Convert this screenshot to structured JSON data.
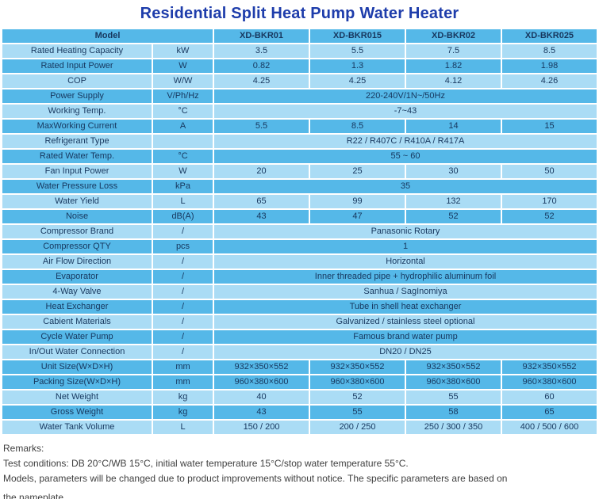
{
  "title": "Residential Split Heat Pump Water Heater",
  "colors": {
    "row_dark": "#55b8e8",
    "row_light": "#aadcf5",
    "title_blue": "#1e3dab",
    "cell_text": "#17375e"
  },
  "table": {
    "model_label": "Model",
    "models": [
      "XD-BKR01",
      "XD-BKR015",
      "XD-BKR02",
      "XD-BKR025"
    ],
    "rows": [
      {
        "label": "Rated Heating Capacity",
        "unit": "kW",
        "values": [
          "3.5",
          "5.5",
          "7.5",
          "8.5"
        ],
        "shade": "light"
      },
      {
        "label": "Rated Input Power",
        "unit": "W",
        "values": [
          "0.82",
          "1.3",
          "1.82",
          "1.98"
        ],
        "shade": "dark"
      },
      {
        "label": "COP",
        "unit": "W/W",
        "values": [
          "4.25",
          "4.25",
          "4.12",
          "4.26"
        ],
        "shade": "light"
      },
      {
        "label": "Power Supply",
        "unit": "V/Ph/Hz",
        "span": "220-240V/1N~/50Hz",
        "shade": "dark"
      },
      {
        "label": "Working Temp.",
        "unit": "°C",
        "span": "-7~43",
        "shade": "light"
      },
      {
        "label": "MaxWorking Current",
        "unit": "A",
        "values": [
          "5.5",
          "8.5",
          "14",
          "15"
        ],
        "shade": "dark"
      },
      {
        "label": "Refrigerant Type",
        "unit": "",
        "span": "R22 / R407C / R410A / R417A",
        "shade": "light"
      },
      {
        "label": "Rated Water Temp.",
        "unit": "°C",
        "span": "55 ~ 60",
        "shade": "dark"
      },
      {
        "label": "Fan Input Power",
        "unit": "W",
        "values": [
          "20",
          "25",
          "30",
          "50"
        ],
        "shade": "light"
      },
      {
        "label": "Water Pressure Loss",
        "unit": "kPa",
        "span": "35",
        "shade": "dark"
      },
      {
        "label": "Water Yield",
        "unit": "L",
        "values": [
          "65",
          "99",
          "132",
          "170"
        ],
        "shade": "light"
      },
      {
        "label": "Noise",
        "unit": "dB(A)",
        "values": [
          "43",
          "47",
          "52",
          "52"
        ],
        "shade": "dark"
      },
      {
        "label": "Compressor Brand",
        "unit": "/",
        "span": "Panasonic Rotary",
        "shade": "light"
      },
      {
        "label": "Compressor QTY",
        "unit": "pcs",
        "span": "1",
        "shade": "dark"
      },
      {
        "label": "Air Flow Direction",
        "unit": "/",
        "span": "Horizontal",
        "shade": "light"
      },
      {
        "label": "Evaporator",
        "unit": "/",
        "span": "Inner threaded pipe + hydrophilic aluminum foil",
        "shade": "dark"
      },
      {
        "label": "4-Way Valve",
        "unit": "/",
        "span": "Sanhua / SagInomiya",
        "shade": "light"
      },
      {
        "label": "Heat Exchanger",
        "unit": "/",
        "span": "Tube in shell heat exchanger",
        "shade": "dark"
      },
      {
        "label": "Cabient Materials",
        "unit": "/",
        "span": "Galvanized / stainless steel optional",
        "shade": "light"
      },
      {
        "label": "Cycle Water Pump",
        "unit": "/",
        "span": "Famous brand water pump",
        "shade": "dark"
      },
      {
        "label": "In/Out Water Connection",
        "unit": "/",
        "span": "DN20 / DN25",
        "shade": "light"
      },
      {
        "label": "Unit Size(W×D×H)",
        "unit": "mm",
        "values": [
          "932×350×552",
          "932×350×552",
          "932×350×552",
          "932×350×552"
        ],
        "shade": "dark"
      },
      {
        "label": "Packing Size(W×D×H)",
        "unit": "mm",
        "values": [
          "960×380×600",
          "960×380×600",
          "960×380×600",
          "960×380×600"
        ],
        "shade": "dark"
      },
      {
        "label": "Net Weight",
        "unit": "kg",
        "values": [
          "40",
          "52",
          "55",
          "60"
        ],
        "shade": "light"
      },
      {
        "label": "Gross Weight",
        "unit": "kg",
        "values": [
          "43",
          "55",
          "58",
          "65"
        ],
        "shade": "dark"
      },
      {
        "label": "Water Tank Volume",
        "unit": "L",
        "values": [
          "150 / 200",
          "200 / 250",
          "250 / 300 / 350",
          "400 / 500 / 600"
        ],
        "shade": "light"
      }
    ]
  },
  "remarks": {
    "lines": [
      "Remarks:",
      "Test conditions: DB 20°C/WB 15°C, initial water temperature 15°C/stop water temperature 55°C.",
      "Models, parameters will be changed due to product improvements without notice. The specific parameters are based on",
      "the nameplate."
    ]
  }
}
